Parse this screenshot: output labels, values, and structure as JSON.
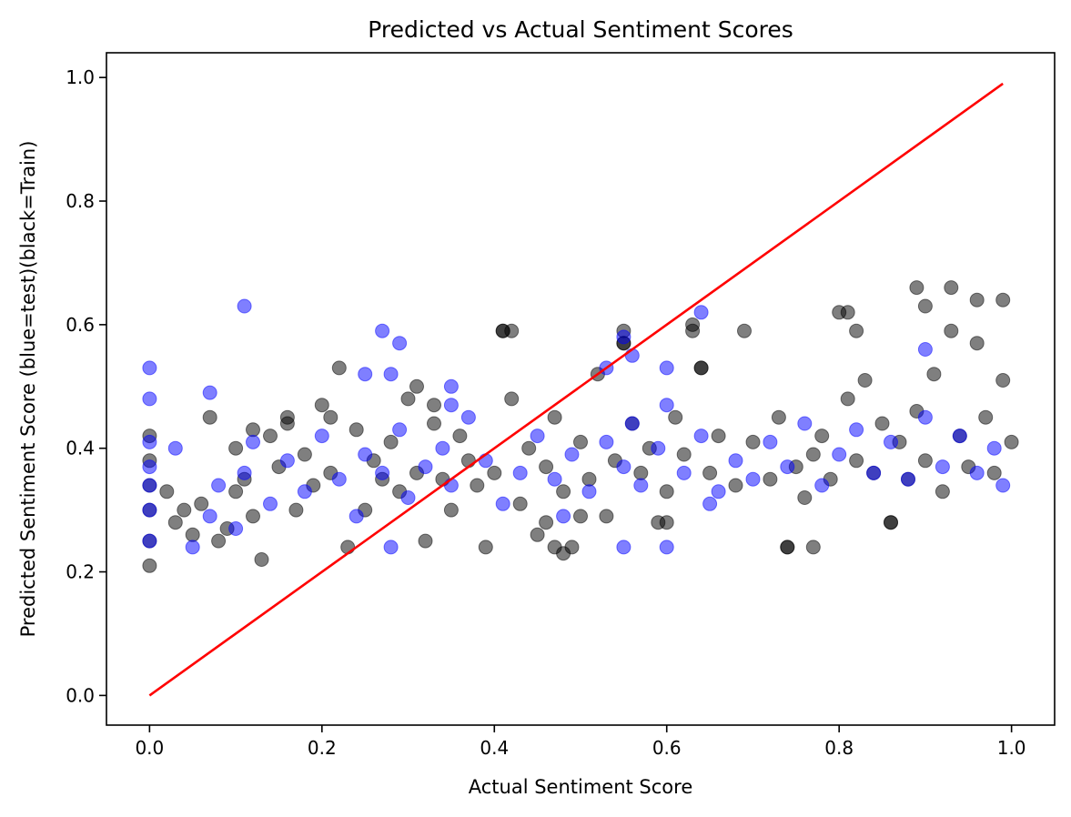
{
  "chart_data": {
    "type": "scatter",
    "title": "Predicted vs Actual Sentiment Scores",
    "xlabel": "Actual Sentiment Score",
    "ylabel": "Predicted Sentiment Score (blue=test)(black=Train)",
    "xlim": [
      -0.05,
      1.05
    ],
    "ylim": [
      -0.048,
      1.04
    ],
    "x_ticks": [
      0.0,
      0.2,
      0.4,
      0.6,
      0.8,
      1.0
    ],
    "x_tick_labels": [
      "0.0",
      "0.2",
      "0.4",
      "0.6",
      "0.8",
      "1.0"
    ],
    "y_ticks": [
      0.0,
      0.2,
      0.4,
      0.6,
      0.8,
      1.0
    ],
    "y_tick_labels": [
      "0.0",
      "0.2",
      "0.4",
      "0.6",
      "0.8",
      "1.0"
    ],
    "grid": false,
    "legend": "none",
    "series": [
      {
        "color": "#000000",
        "alpha": 0.5,
        "x": [
          0.0,
          0.0,
          0.0,
          0.0,
          0.0,
          0.0,
          0.02,
          0.03,
          0.04,
          0.05,
          0.06,
          0.07,
          0.08,
          0.09,
          0.1,
          0.1,
          0.11,
          0.12,
          0.13,
          0.14,
          0.15,
          0.16,
          0.17,
          0.18,
          0.19,
          0.2,
          0.21,
          0.22,
          0.23,
          0.24,
          0.25,
          0.26,
          0.27,
          0.28,
          0.29,
          0.3,
          0.31,
          0.32,
          0.33,
          0.34,
          0.35,
          0.36,
          0.37,
          0.38,
          0.39,
          0.4,
          0.41,
          0.42,
          0.43,
          0.44,
          0.45,
          0.46,
          0.47,
          0.48,
          0.49,
          0.5,
          0.51,
          0.52,
          0.53,
          0.54,
          0.55,
          0.56,
          0.57,
          0.58,
          0.59,
          0.6,
          0.61,
          0.62,
          0.63,
          0.64,
          0.65,
          0.66,
          0.68,
          0.69,
          0.7,
          0.72,
          0.73,
          0.74,
          0.75,
          0.76,
          0.77,
          0.78,
          0.79,
          0.8,
          0.81,
          0.82,
          0.83,
          0.84,
          0.85,
          0.86,
          0.87,
          0.88,
          0.89,
          0.9,
          0.91,
          0.92,
          0.93,
          0.94,
          0.95,
          0.96,
          0.97,
          0.98,
          0.99,
          1.0,
          0.41,
          0.42,
          0.55,
          0.55,
          0.63,
          0.64,
          0.81,
          0.82,
          0.89,
          0.9,
          0.93,
          0.96,
          0.99,
          0.74,
          0.77,
          0.86,
          0.47,
          0.48,
          0.6,
          0.46,
          0.5,
          0.31,
          0.33,
          0.21,
          0.16,
          0.12
        ],
        "y": [
          0.21,
          0.25,
          0.3,
          0.34,
          0.38,
          0.42,
          0.33,
          0.28,
          0.3,
          0.26,
          0.31,
          0.45,
          0.25,
          0.27,
          0.33,
          0.4,
          0.35,
          0.29,
          0.22,
          0.42,
          0.37,
          0.45,
          0.3,
          0.39,
          0.34,
          0.47,
          0.36,
          0.53,
          0.24,
          0.43,
          0.3,
          0.38,
          0.35,
          0.41,
          0.33,
          0.48,
          0.36,
          0.25,
          0.44,
          0.35,
          0.3,
          0.42,
          0.38,
          0.34,
          0.24,
          0.36,
          0.59,
          0.48,
          0.31,
          0.4,
          0.26,
          0.37,
          0.45,
          0.33,
          0.24,
          0.41,
          0.35,
          0.52,
          0.29,
          0.38,
          0.57,
          0.44,
          0.36,
          0.4,
          0.28,
          0.33,
          0.45,
          0.39,
          0.6,
          0.53,
          0.36,
          0.42,
          0.34,
          0.59,
          0.41,
          0.35,
          0.45,
          0.24,
          0.37,
          0.32,
          0.39,
          0.42,
          0.35,
          0.62,
          0.48,
          0.38,
          0.51,
          0.36,
          0.44,
          0.28,
          0.41,
          0.35,
          0.46,
          0.38,
          0.52,
          0.33,
          0.59,
          0.42,
          0.37,
          0.64,
          0.45,
          0.36,
          0.51,
          0.41,
          0.59,
          0.59,
          0.59,
          0.57,
          0.59,
          0.53,
          0.62,
          0.59,
          0.66,
          0.63,
          0.66,
          0.57,
          0.64,
          0.24,
          0.24,
          0.28,
          0.24,
          0.23,
          0.28,
          0.28,
          0.29,
          0.5,
          0.47,
          0.45,
          0.44,
          0.43
        ]
      },
      {
        "color": "#0000ff",
        "alpha": 0.5,
        "x": [
          0.0,
          0.0,
          0.0,
          0.0,
          0.0,
          0.0,
          0.0,
          0.03,
          0.05,
          0.07,
          0.08,
          0.1,
          0.11,
          0.12,
          0.14,
          0.16,
          0.18,
          0.2,
          0.22,
          0.24,
          0.25,
          0.27,
          0.28,
          0.29,
          0.3,
          0.32,
          0.34,
          0.35,
          0.37,
          0.39,
          0.41,
          0.43,
          0.45,
          0.47,
          0.49,
          0.51,
          0.53,
          0.55,
          0.56,
          0.57,
          0.59,
          0.6,
          0.62,
          0.64,
          0.66,
          0.68,
          0.7,
          0.72,
          0.74,
          0.76,
          0.78,
          0.8,
          0.82,
          0.84,
          0.86,
          0.88,
          0.9,
          0.92,
          0.94,
          0.96,
          0.98,
          0.99,
          0.11,
          0.27,
          0.29,
          0.25,
          0.28,
          0.35,
          0.55,
          0.56,
          0.64,
          0.9,
          0.07,
          0.53,
          0.6,
          0.55,
          0.6,
          0.65,
          0.35,
          0.48
        ],
        "y": [
          0.25,
          0.3,
          0.34,
          0.37,
          0.41,
          0.48,
          0.53,
          0.4,
          0.24,
          0.29,
          0.34,
          0.27,
          0.36,
          0.41,
          0.31,
          0.38,
          0.33,
          0.42,
          0.35,
          0.29,
          0.39,
          0.36,
          0.24,
          0.43,
          0.32,
          0.37,
          0.4,
          0.34,
          0.45,
          0.38,
          0.31,
          0.36,
          0.42,
          0.35,
          0.39,
          0.33,
          0.41,
          0.37,
          0.44,
          0.34,
          0.4,
          0.47,
          0.36,
          0.42,
          0.33,
          0.38,
          0.35,
          0.41,
          0.37,
          0.44,
          0.34,
          0.39,
          0.43,
          0.36,
          0.41,
          0.35,
          0.45,
          0.37,
          0.42,
          0.36,
          0.4,
          0.34,
          0.63,
          0.59,
          0.57,
          0.52,
          0.52,
          0.5,
          0.58,
          0.55,
          0.62,
          0.56,
          0.49,
          0.53,
          0.53,
          0.24,
          0.24,
          0.31,
          0.47,
          0.29
        ]
      }
    ],
    "reference_line": {
      "color": "#ff0000",
      "x": [
        0.0,
        0.99
      ],
      "y": [
        0.0,
        0.99
      ]
    }
  }
}
